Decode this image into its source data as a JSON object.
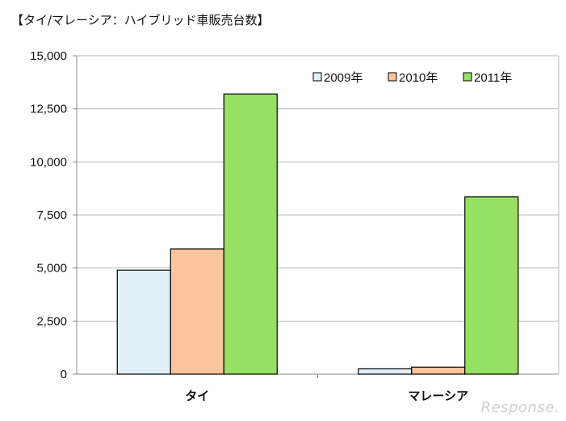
{
  "chart_data": {
    "type": "bar",
    "title": "【タイ/マレーシア：ハイブリッド車販売台数】",
    "categories": [
      "タイ",
      "マレーシア"
    ],
    "series": [
      {
        "name": "2009年",
        "values": [
          4900,
          250
        ],
        "color": "#e0f0f8"
      },
      {
        "name": "2010年",
        "values": [
          5900,
          330
        ],
        "color": "#fcc49c"
      },
      {
        "name": "2011年",
        "values": [
          13200,
          8350
        ],
        "color": "#96e064"
      }
    ],
    "ylim": [
      0,
      15000
    ],
    "yticks": [
      0,
      2500,
      5000,
      7500,
      10000,
      12500,
      15000
    ],
    "ytick_labels": [
      "0",
      "2,500",
      "5,000",
      "7,500",
      "10,000",
      "12,500",
      "15,000"
    ],
    "grid": true,
    "legend_position": "top-right"
  },
  "watermark": "Response."
}
